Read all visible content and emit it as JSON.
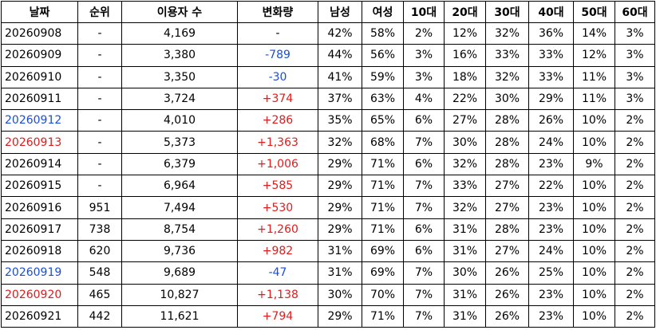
{
  "table": {
    "header": [
      "날짜",
      "순위",
      "이용자 수",
      "변화량",
      "남성",
      "여성",
      "10대",
      "20대",
      "30대",
      "40대",
      "50대",
      "60대"
    ],
    "rows": [
      [
        "20260908",
        "-",
        "4,169",
        "-",
        "42%",
        "58%",
        "2%",
        "12%",
        "32%",
        "36%",
        "14%",
        "3%"
      ],
      [
        "20260909",
        "-",
        "3,380",
        "-789",
        "44%",
        "56%",
        "3%",
        "16%",
        "33%",
        "33%",
        "12%",
        "3%"
      ],
      [
        "20260910",
        "-",
        "3,350",
        "-30",
        "41%",
        "59%",
        "3%",
        "18%",
        "32%",
        "33%",
        "11%",
        "3%"
      ],
      [
        "20260911",
        "-",
        "3,724",
        "+374",
        "37%",
        "63%",
        "4%",
        "22%",
        "30%",
        "29%",
        "11%",
        "3%"
      ],
      [
        "20260912",
        "-",
        "4,010",
        "+286",
        "35%",
        "65%",
        "6%",
        "27%",
        "28%",
        "26%",
        "10%",
        "2%"
      ],
      [
        "20260913",
        "-",
        "5,373",
        "+1,363",
        "32%",
        "68%",
        "7%",
        "30%",
        "28%",
        "24%",
        "10%",
        "2%"
      ],
      [
        "20260914",
        "-",
        "6,379",
        "+1,006",
        "29%",
        "71%",
        "6%",
        "32%",
        "28%",
        "23%",
        "9%",
        "2%"
      ],
      [
        "20260915",
        "-",
        "6,964",
        "+585",
        "29%",
        "71%",
        "7%",
        "33%",
        "27%",
        "22%",
        "10%",
        "2%"
      ],
      [
        "20260916",
        "951",
        "7,494",
        "+530",
        "29%",
        "71%",
        "7%",
        "32%",
        "27%",
        "23%",
        "10%",
        "2%"
      ],
      [
        "20260917",
        "738",
        "8,754",
        "+1,260",
        "29%",
        "71%",
        "6%",
        "31%",
        "28%",
        "23%",
        "10%",
        "2%"
      ],
      [
        "20260918",
        "620",
        "9,736",
        "+982",
        "31%",
        "69%",
        "6%",
        "31%",
        "27%",
        "24%",
        "10%",
        "2%"
      ],
      [
        "20260919",
        "548",
        "9,689",
        "-47",
        "31%",
        "69%",
        "7%",
        "30%",
        "26%",
        "25%",
        "10%",
        "2%"
      ],
      [
        "20260920",
        "465",
        "10,827",
        "+1,138",
        "30%",
        "70%",
        "7%",
        "31%",
        "26%",
        "23%",
        "10%",
        "2%"
      ],
      [
        "20260921",
        "442",
        "11,621",
        "+794",
        "29%",
        "71%",
        "7%",
        "31%",
        "26%",
        "23%",
        "10%",
        "2%"
      ]
    ]
  }
}
